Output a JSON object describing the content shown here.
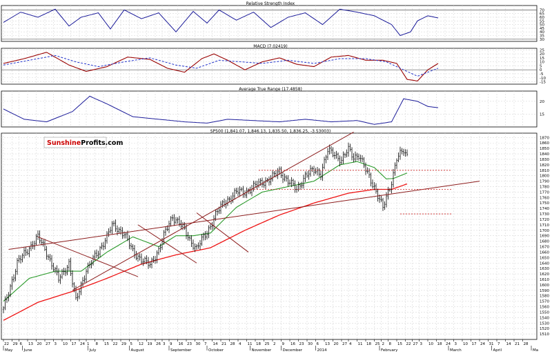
{
  "colors": {
    "price_bars": "#000000",
    "rsi_line": "#1a1a99",
    "macd_line": "#990000",
    "macd_signal": "#2233cc",
    "atr_line": "#1a1a99",
    "sma_fast": "#2a9a2a",
    "sma_slow": "#ee1111",
    "trendline": "#8b1a1a",
    "support_dashed": "#cc2222",
    "grid": "#d8d8d8",
    "axis_text": "#000000"
  },
  "logo": {
    "part1": "Sunshine",
    "part2": "Profits",
    "part3": ".com",
    "part1_color": "#cc0000",
    "part2_color": "#000000"
  },
  "chart_data": [
    {
      "type": "line",
      "title": "Relative Strength Index",
      "yticks": [
        30,
        35,
        40,
        45,
        50,
        55,
        60,
        65,
        70
      ],
      "ylim": [
        27,
        76
      ],
      "reference_lines": [
        30,
        70
      ],
      "x_index": [
        0,
        10,
        20,
        30,
        38,
        45,
        55,
        62,
        70,
        80,
        90,
        100,
        110,
        118,
        125,
        135,
        145,
        155,
        165,
        175,
        185,
        195,
        205,
        215,
        225,
        230,
        236,
        240,
        246,
        252
      ],
      "values": [
        53,
        67,
        60,
        71,
        48,
        60,
        66,
        44,
        70,
        58,
        66,
        40,
        68,
        52,
        70,
        56,
        67,
        46,
        60,
        66,
        50,
        71,
        67,
        62,
        50,
        35,
        40,
        55,
        62,
        59
      ]
    },
    {
      "type": "line",
      "title": "MACD (7.02419)",
      "yticks": [
        -15,
        -10,
        -5,
        0,
        5,
        10,
        15,
        20,
        25
      ],
      "ylim": [
        -18,
        27
      ],
      "reference_lines": [
        0
      ],
      "series": [
        {
          "x_index": [
            0,
            12,
            25,
            38,
            48,
            60,
            72,
            85,
            95,
            105,
            115,
            122,
            130,
            140,
            150,
            160,
            170,
            180,
            190,
            200,
            210,
            220,
            228,
            234,
            240,
            246,
            252
          ],
          "values": [
            8,
            14,
            22,
            6,
            -2,
            4,
            16,
            13,
            2,
            -3,
            14,
            20,
            12,
            0,
            10,
            15,
            7,
            4,
            16,
            18,
            12,
            12,
            8,
            -12,
            -14,
            0,
            8
          ]
        },
        {
          "x_index": [
            0,
            15,
            30,
            42,
            55,
            70,
            85,
            100,
            112,
            125,
            138,
            150,
            165,
            180,
            195,
            210,
            222,
            232,
            240,
            252
          ],
          "values": [
            6,
            12,
            18,
            10,
            4,
            10,
            15,
            6,
            2,
            12,
            10,
            8,
            12,
            8,
            14,
            14,
            10,
            0,
            -8,
            2
          ]
        }
      ]
    },
    {
      "type": "line",
      "title": "Average True Range (17.4858)",
      "yticks": [
        15,
        20
      ],
      "ylim": [
        10,
        24
      ],
      "x_index": [
        0,
        12,
        25,
        40,
        50,
        60,
        75,
        90,
        105,
        118,
        130,
        145,
        160,
        175,
        190,
        205,
        215,
        225,
        232,
        240,
        246,
        252
      ],
      "values": [
        17,
        13,
        12,
        16,
        22,
        19,
        14,
        13,
        12,
        11.5,
        13,
        12.5,
        12,
        13,
        12,
        12.5,
        11,
        12,
        21,
        20,
        18,
        17.5
      ]
    },
    {
      "type": "line",
      "title": "SP500 (1,841.07, 1,846.13, 1,835.50, 1,836.25, -3.53003)",
      "yticks": [
        1510,
        1520,
        1530,
        1540,
        1550,
        1560,
        1570,
        1580,
        1590,
        1600,
        1610,
        1620,
        1630,
        1640,
        1650,
        1660,
        1670,
        1680,
        1690,
        1700,
        1710,
        1720,
        1730,
        1740,
        1750,
        1760,
        1770,
        1780,
        1790,
        1800,
        1810,
        1820,
        1830,
        1840,
        1850,
        1860,
        1870
      ],
      "ylim": [
        1500,
        1878
      ],
      "xticks": [
        {
          "i": 0,
          "label": "22"
        },
        {
          "i": 5,
          "label": "29"
        },
        {
          "i": 9,
          "label": "6"
        },
        {
          "i": 14,
          "label": "13"
        },
        {
          "i": 19,
          "label": "20"
        },
        {
          "i": 24,
          "label": "27"
        },
        {
          "i": 29,
          "label": "3"
        },
        {
          "i": 34,
          "label": "10"
        },
        {
          "i": 39,
          "label": "17"
        },
        {
          "i": 44,
          "label": "24"
        },
        {
          "i": 48,
          "label": "1"
        },
        {
          "i": 53,
          "label": "8"
        },
        {
          "i": 58,
          "label": "15"
        },
        {
          "i": 63,
          "label": "22"
        },
        {
          "i": 68,
          "label": "29"
        },
        {
          "i": 73,
          "label": "5"
        },
        {
          "i": 78,
          "label": "12"
        },
        {
          "i": 83,
          "label": "19"
        },
        {
          "i": 88,
          "label": "26"
        },
        {
          "i": 92,
          "label": "3"
        },
        {
          "i": 96,
          "label": "9"
        },
        {
          "i": 101,
          "label": "16"
        },
        {
          "i": 106,
          "label": "23"
        },
        {
          "i": 111,
          "label": "30"
        },
        {
          "i": 116,
          "label": "7"
        },
        {
          "i": 121,
          "label": "14"
        },
        {
          "i": 126,
          "label": "21"
        },
        {
          "i": 131,
          "label": "28"
        },
        {
          "i": 136,
          "label": "4"
        },
        {
          "i": 141,
          "label": "11"
        },
        {
          "i": 146,
          "label": "18"
        },
        {
          "i": 151,
          "label": "25"
        },
        {
          "i": 156,
          "label": "2"
        },
        {
          "i": 161,
          "label": "9"
        },
        {
          "i": 166,
          "label": "16"
        },
        {
          "i": 171,
          "label": "23"
        },
        {
          "i": 176,
          "label": "30"
        },
        {
          "i": 181,
          "label": "6"
        },
        {
          "i": 186,
          "label": "13"
        },
        {
          "i": 191,
          "label": "20"
        },
        {
          "i": 196,
          "label": "27"
        },
        {
          "i": 200,
          "label": "4"
        },
        {
          "i": 205,
          "label": "11"
        },
        {
          "i": 210,
          "label": "18"
        },
        {
          "i": 215,
          "label": "25"
        },
        {
          "i": 219,
          "label": "2"
        },
        {
          "i": 223,
          "label": "8"
        },
        {
          "i": 228,
          "label": "15"
        },
        {
          "i": 233,
          "label": "22"
        },
        {
          "i": 237,
          "label": "27"
        },
        {
          "i": 241,
          "label": "3"
        },
        {
          "i": 246,
          "label": "10"
        },
        {
          "i": 251,
          "label": "18"
        },
        {
          "i": 256,
          "label": "24"
        },
        {
          "i": 261,
          "label": "3"
        },
        {
          "i": 266,
          "label": "10"
        },
        {
          "i": 271,
          "label": "17"
        },
        {
          "i": 276,
          "label": "24"
        },
        {
          "i": 281,
          "label": "31"
        },
        {
          "i": 286,
          "label": "7"
        },
        {
          "i": 291,
          "label": "14"
        },
        {
          "i": 296,
          "label": "21"
        },
        {
          "i": 301,
          "label": "28"
        }
      ],
      "month_labels": [
        {
          "i": 0,
          "label": "May"
        },
        {
          "i": 11,
          "label": "June"
        },
        {
          "i": 49,
          "label": "July"
        },
        {
          "i": 73,
          "label": "August"
        },
        {
          "i": 96,
          "label": "September"
        },
        {
          "i": 118,
          "label": "October"
        },
        {
          "i": 143,
          "label": "November"
        },
        {
          "i": 161,
          "label": "December"
        },
        {
          "i": 181,
          "label": "2014"
        },
        {
          "i": 218,
          "label": "February"
        },
        {
          "i": 258,
          "label": "March"
        },
        {
          "i": 283,
          "label": "April"
        },
        {
          "i": 306,
          "label": "Ma"
        }
      ],
      "price_path": {
        "x_index": [
          0,
          8,
          20,
          25,
          32,
          38,
          42,
          48,
          55,
          60,
          63,
          70,
          75,
          85,
          90,
          93,
          98,
          102,
          108,
          112,
          118,
          123,
          128,
          135,
          140,
          148,
          155,
          160,
          165,
          170,
          175,
          180,
          184,
          188,
          192,
          196,
          200,
          203,
          206,
          210,
          215,
          220,
          225,
          228,
          232,
          234
        ],
        "close": [
          1555,
          1640,
          1688,
          1660,
          1610,
          1640,
          1570,
          1628,
          1660,
          1690,
          1708,
          1695,
          1660,
          1635,
          1665,
          1690,
          1725,
          1715,
          1682,
          1668,
          1695,
          1730,
          1750,
          1770,
          1770,
          1785,
          1795,
          1808,
          1790,
          1775,
          1800,
          1810,
          1805,
          1845,
          1840,
          1828,
          1848,
          1835,
          1838,
          1810,
          1780,
          1740,
          1790,
          1832,
          1845,
          1836
        ]
      },
      "sma_fast": {
        "x_index": [
          0,
          15,
          30,
          45,
          60,
          75,
          90,
          100,
          110,
          120,
          135,
          150,
          165,
          180,
          195,
          205,
          215,
          222,
          226,
          234
        ],
        "values": [
          1570,
          1612,
          1625,
          1625,
          1660,
          1688,
          1670,
          1690,
          1690,
          1695,
          1742,
          1770,
          1780,
          1790,
          1820,
          1826,
          1815,
          1794,
          1795,
          1805
        ]
      },
      "sma_slow": {
        "x_index": [
          0,
          20,
          40,
          60,
          80,
          100,
          120,
          140,
          160,
          180,
          200,
          215,
          225,
          234
        ],
        "values": [
          1535,
          1568,
          1588,
          1612,
          1638,
          1655,
          1668,
          1700,
          1728,
          1750,
          1768,
          1775,
          1775,
          1785
        ]
      },
      "trendlines": [
        {
          "style": "solid",
          "from": [
            3,
            1665
          ],
          "to": [
            276,
            1790
          ]
        },
        {
          "style": "solid",
          "from": [
            40,
            1590
          ],
          "to": [
            203,
            1880
          ]
        },
        {
          "style": "solid",
          "from": [
            20,
            1688
          ],
          "to": [
            78,
            1615
          ]
        },
        {
          "style": "solid",
          "from": [
            78,
            1710
          ],
          "to": [
            112,
            1640
          ]
        },
        {
          "style": "solid",
          "from": [
            112,
            1732
          ],
          "to": [
            142,
            1660
          ]
        }
      ],
      "support_lines": [
        {
          "style": "dashed",
          "value": 1810,
          "from": 148,
          "to": 260
        },
        {
          "style": "dashed",
          "value": 1775,
          "from": 142,
          "to": 260
        },
        {
          "style": "dashed",
          "value": 1730,
          "from": 230,
          "to": 260
        }
      ]
    }
  ]
}
